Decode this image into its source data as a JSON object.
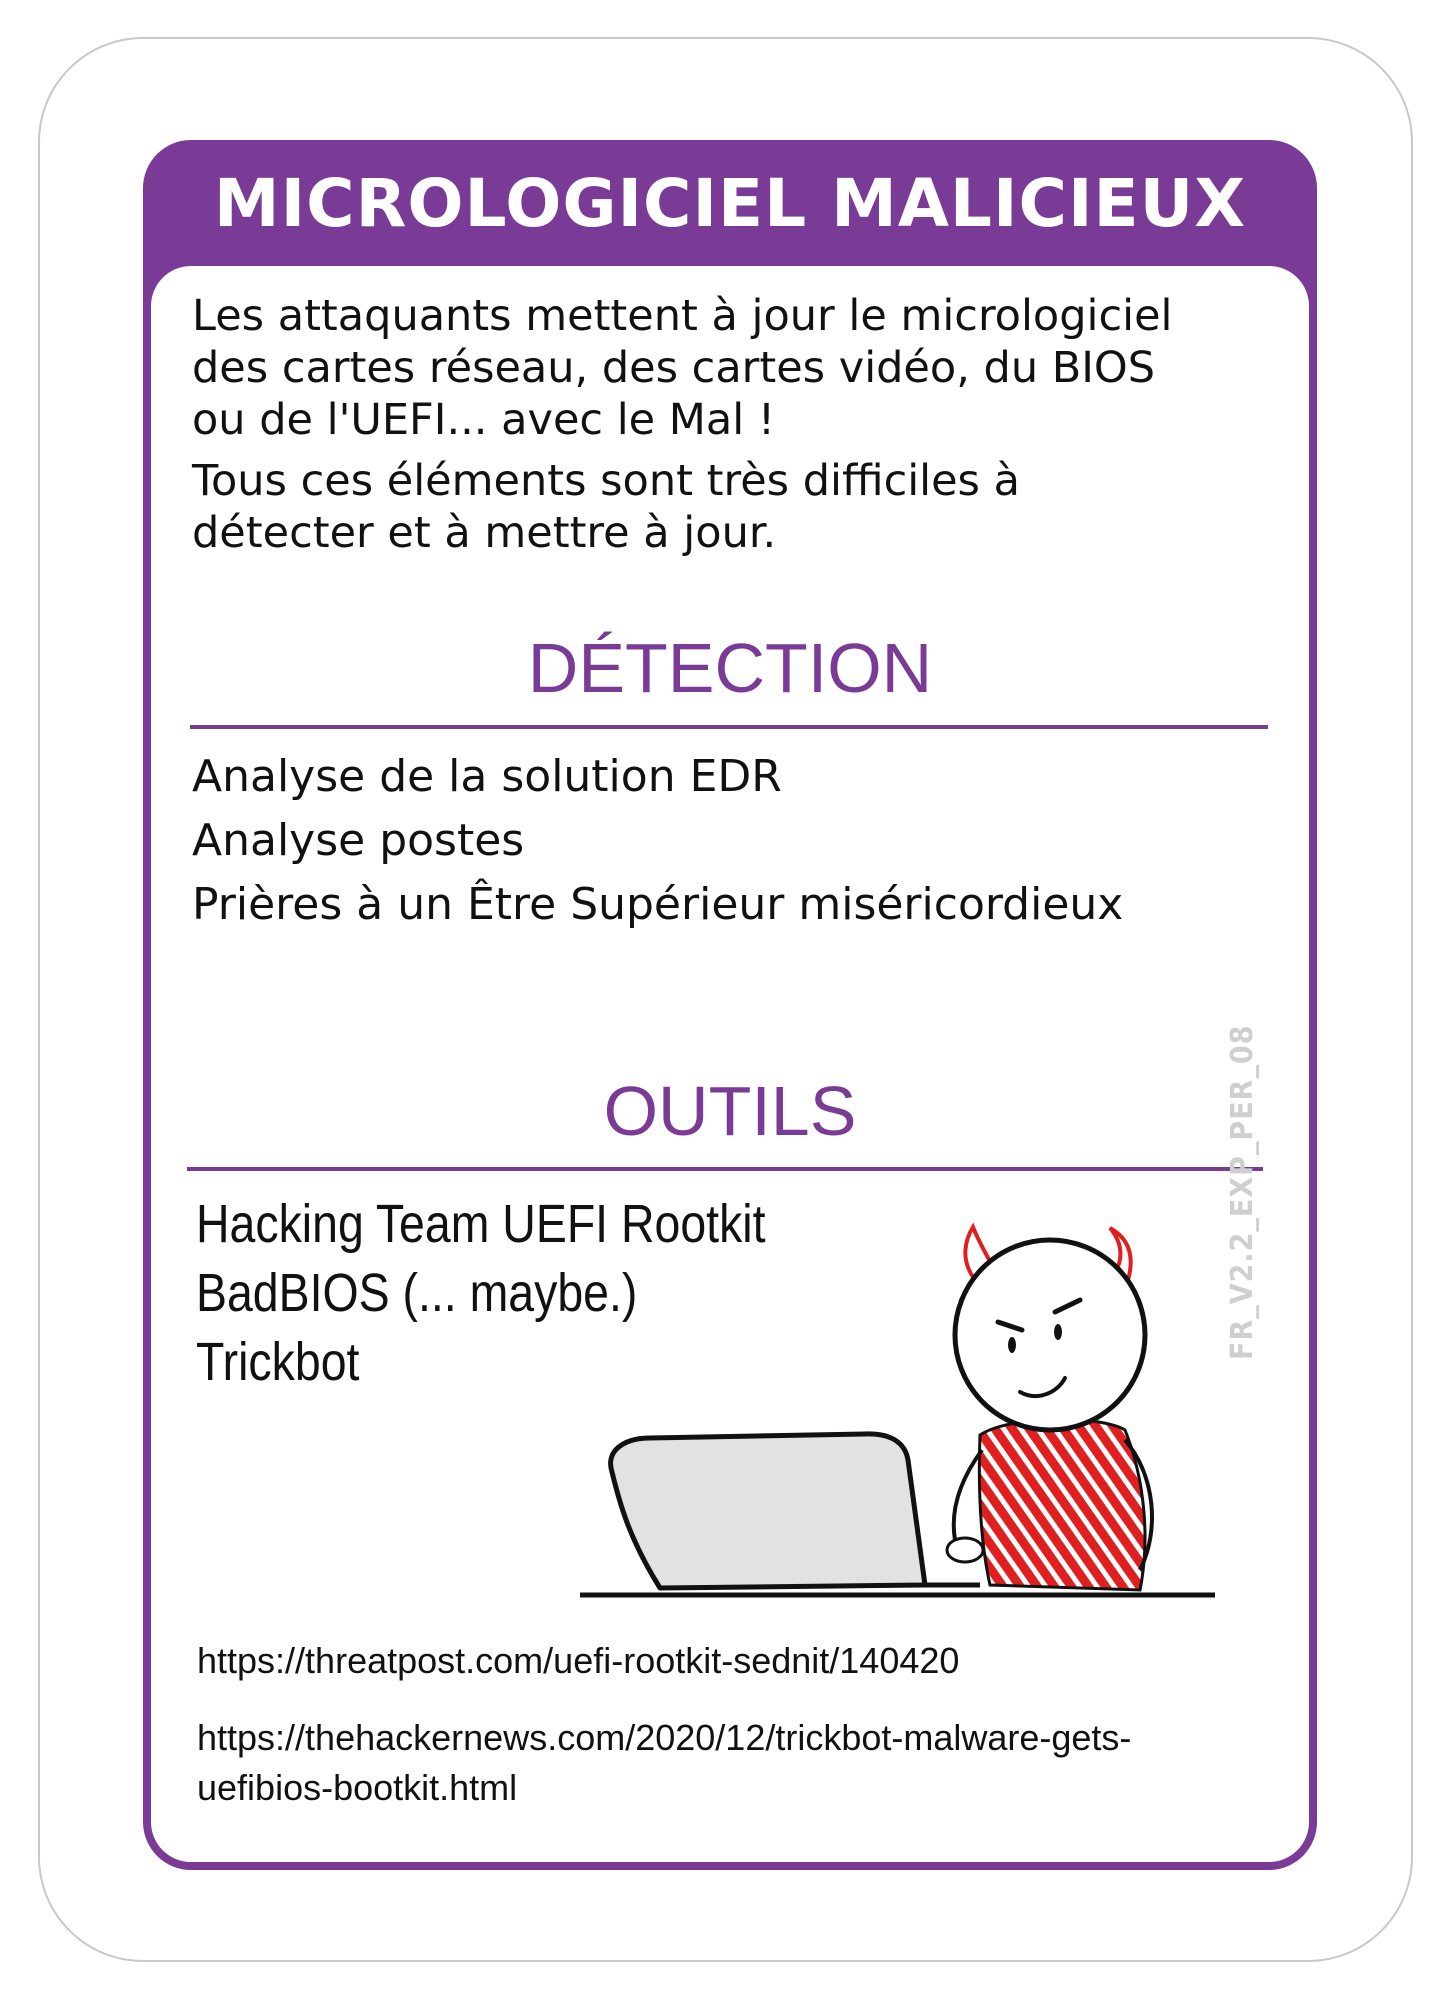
{
  "card": {
    "title": "MICROLOGICIEL MALICIEUX",
    "accent_color": "#7a3b96",
    "description": [
      "Les attaquants mettent à jour le micrologiciel des cartes réseau, des cartes vidéo, du BIOS ou de l'UEFI... avec le Mal !",
      "Tous ces éléments sont très difficiles à détecter et à mettre à jour."
    ],
    "description_lines": [
      "Les attaquants mettent à jour le micrologiciel",
      "des cartes réseau, des cartes vidéo, du BIOS",
      "ou de l'UEFI... avec le Mal !",
      "Tous ces éléments sont très difficiles à",
      "détecter et à mettre à jour."
    ],
    "detection": {
      "heading": "DÉTECTION",
      "items": [
        "Analyse de la solution EDR",
        "Analyse postes",
        "Prières à un Être Supérieur miséricordieux"
      ]
    },
    "tools": {
      "heading": "OUTILS",
      "items": [
        "Hacking Team UEFI Rootkit",
        "BadBIOS (... maybe.)",
        "Trickbot"
      ]
    },
    "links": [
      "https://threatpost.com/uefi-rootkit-sednit/140420",
      "https://thehackernews.com/2020/12/trickbot-malware-gets-",
      "uefibios-bootkit.html"
    ],
    "version_code": "FR_V2.2_EXP_PER_08",
    "illustration": "devil-stick-figure-at-laptop"
  }
}
